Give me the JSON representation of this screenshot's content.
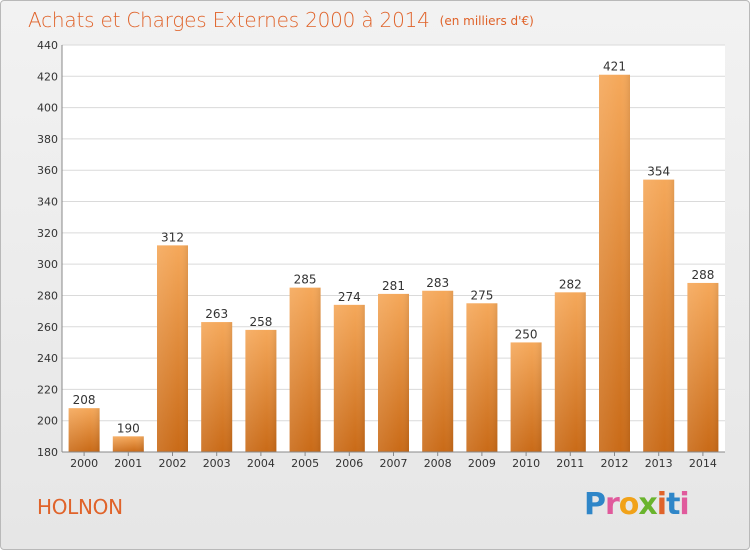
{
  "title": "Achats et Charges Externes 2000 à 2014",
  "subtitle": "(en milliers d'€)",
  "commune": "HOLNON",
  "logo": {
    "text": "Proxiti",
    "letters": [
      {
        "ch": "P",
        "color": "#2f86c8"
      },
      {
        "ch": "r",
        "color": "#e05a9c"
      },
      {
        "ch": "o",
        "color": "#f1a219"
      },
      {
        "ch": "x",
        "color": "#6ab42d"
      },
      {
        "ch": "i",
        "color": "#e0632a"
      },
      {
        "ch": "t",
        "color": "#2f86c8"
      },
      {
        "ch": "i",
        "color": "#e05a9c"
      }
    ]
  },
  "colors": {
    "bar_light": "#f5a85a",
    "bar_dark": "#c96a17",
    "grid": "#dadada",
    "axis_text": "#333333",
    "accent": "#e0632a"
  },
  "chart_data": {
    "type": "bar",
    "title": "Achats et Charges Externes 2000 à 2014",
    "subtitle": "(en milliers d'€)",
    "categories": [
      "2000",
      "2001",
      "2002",
      "2003",
      "2004",
      "2005",
      "2006",
      "2007",
      "2008",
      "2009",
      "2010",
      "2011",
      "2012",
      "2013",
      "2014"
    ],
    "values": [
      208,
      190,
      312,
      263,
      258,
      285,
      274,
      281,
      283,
      275,
      250,
      282,
      421,
      354,
      288
    ],
    "ylim": [
      180,
      440
    ],
    "yticks": [
      180,
      200,
      220,
      240,
      260,
      280,
      300,
      320,
      340,
      360,
      380,
      400,
      420,
      440
    ],
    "grid": true,
    "data_labels": true
  }
}
